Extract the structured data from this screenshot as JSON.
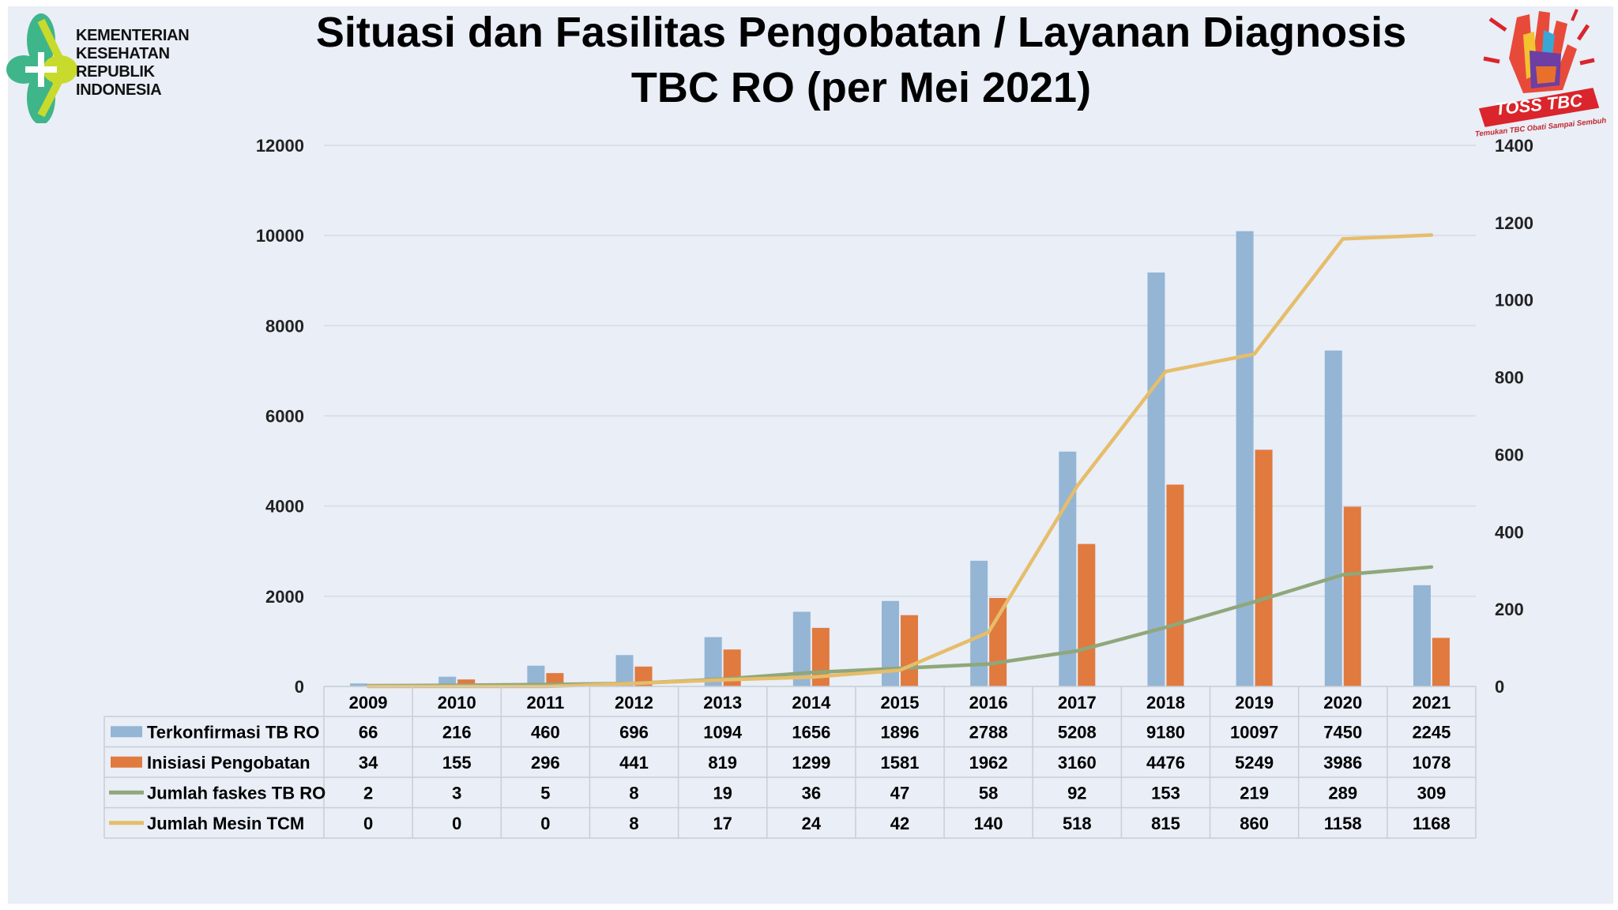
{
  "title_line1": "Situasi dan Fasilitas Pengobatan / Layanan Diagnosis",
  "title_line2": "TBC RO (per Mei 2021)",
  "logo_left": {
    "lines": [
      "KEMENTERIAN",
      "KESEHATAN",
      "REPUBLIK",
      "INDONESIA"
    ]
  },
  "logo_right": {
    "brand": "TOSS TBC",
    "tagline": "Temukan TBC Obati Sampai Sembuh"
  },
  "colors": {
    "terkonfirmasi": "#94b5d4",
    "inisiasi": "#e07a3f",
    "faskes": "#8fa77a",
    "mesin": "#e6bd6a",
    "grid": "#d6dbe2",
    "table_border": "#c9ced6"
  },
  "chart_data": {
    "type": "bar",
    "categories": [
      "2009",
      "2010",
      "2011",
      "2012",
      "2013",
      "2014",
      "2015",
      "2016",
      "2017",
      "2018",
      "2019",
      "2020",
      "2021"
    ],
    "ylim": [
      0,
      12000
    ],
    "yticks": [
      "0",
      "2000",
      "4000",
      "6000",
      "8000",
      "10000",
      "12000"
    ],
    "y2lim": [
      0,
      1400
    ],
    "y2ticks": [
      "0",
      "200",
      "400",
      "600",
      "800",
      "1000",
      "1200",
      "1400"
    ],
    "series": [
      {
        "name": "Terkonfirmasi TB RO",
        "type": "bar",
        "axis": "left",
        "values": [
          66,
          216,
          460,
          696,
          1094,
          1656,
          1896,
          2788,
          5208,
          9180,
          10097,
          7450,
          2245
        ]
      },
      {
        "name": "Inisiasi Pengobatan",
        "type": "bar",
        "axis": "left",
        "values": [
          34,
          155,
          296,
          441,
          819,
          1299,
          1581,
          1962,
          3160,
          4476,
          5249,
          3986,
          1078
        ]
      },
      {
        "name": "Jumlah faskes TB RO",
        "type": "line",
        "axis": "right",
        "values": [
          2,
          3,
          5,
          8,
          19,
          36,
          47,
          58,
          92,
          153,
          219,
          289,
          309
        ]
      },
      {
        "name": "Jumlah Mesin TCM",
        "type": "line",
        "axis": "right",
        "values": [
          0,
          0,
          0,
          8,
          17,
          24,
          42,
          140,
          518,
          815,
          860,
          1158,
          1168
        ]
      }
    ],
    "legend": "data-table"
  }
}
